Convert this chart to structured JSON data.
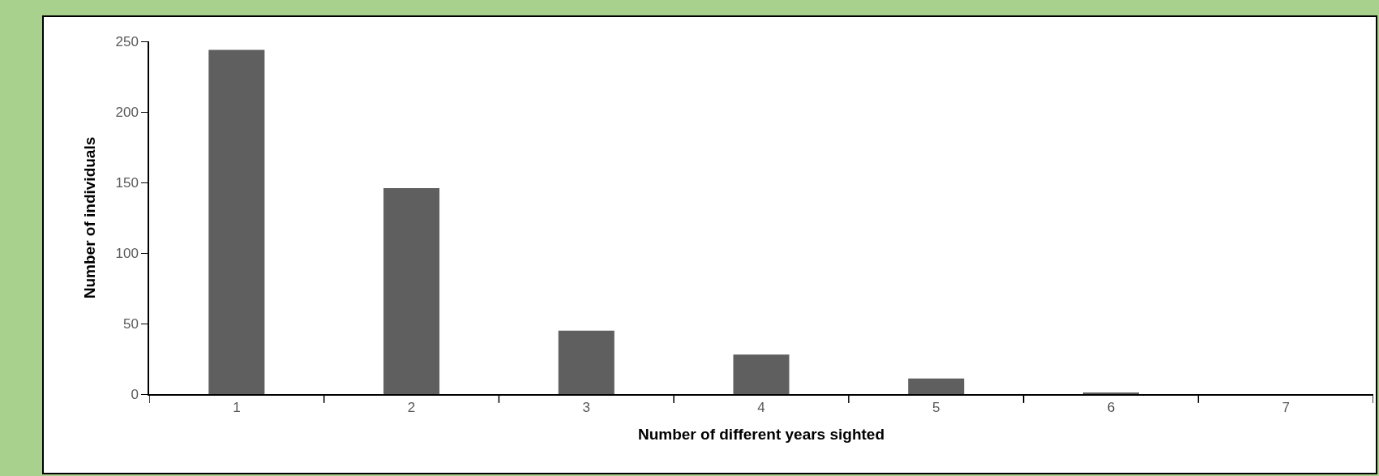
{
  "chart_data": {
    "type": "bar",
    "xlabel": "Number of different years sighted",
    "ylabel": "Number of individuals",
    "categories": [
      "1",
      "2",
      "3",
      "4",
      "5",
      "6",
      "7"
    ],
    "values": [
      244,
      146,
      45,
      28,
      11,
      1,
      0
    ],
    "color": "#5f5f5f",
    "ylim": [
      0,
      250
    ],
    "yticks": [
      0,
      50,
      100,
      150,
      200,
      250
    ],
    "grid": false
  }
}
